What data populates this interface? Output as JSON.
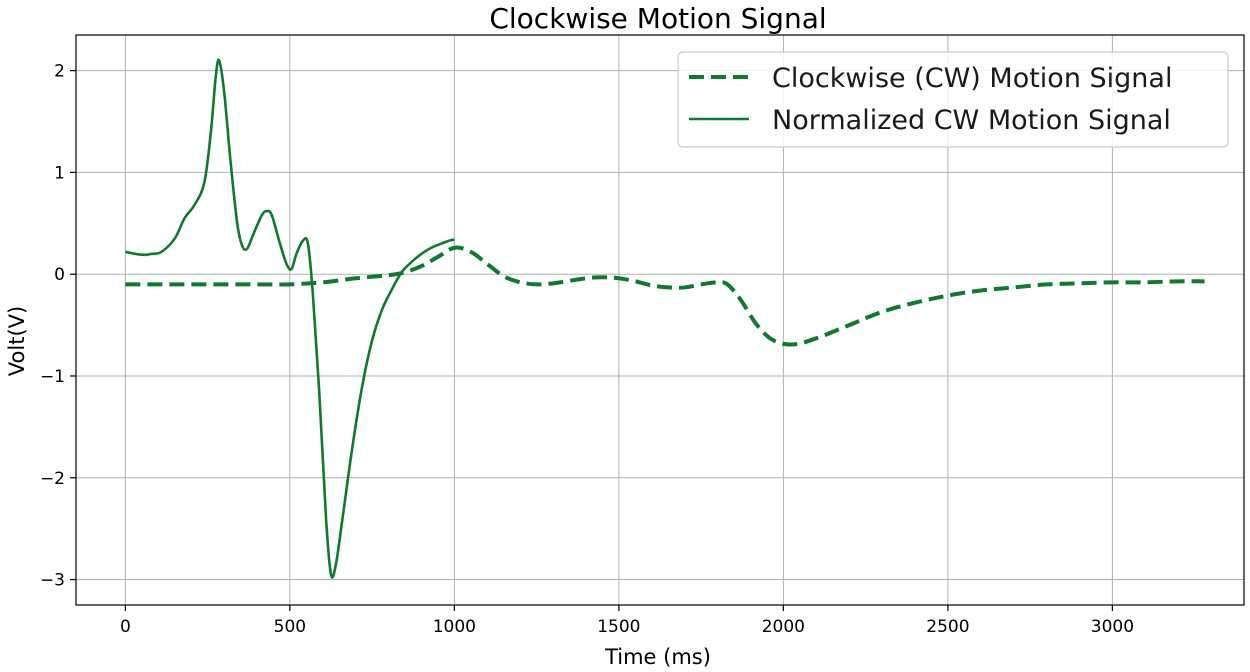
{
  "chart_data": {
    "type": "line",
    "title": "Clockwise Motion Signal",
    "xlabel": "Time (ms)",
    "ylabel": "Volt(V)",
    "xlim": [
      -150,
      3400
    ],
    "ylim": [
      -3.25,
      2.35
    ],
    "x_ticks": [
      0,
      500,
      1000,
      1500,
      2000,
      2500,
      3000
    ],
    "x_tick_labels": [
      "0",
      "500",
      "1000",
      "1500",
      "2000",
      "2500",
      "3000"
    ],
    "y_ticks": [
      2,
      1,
      0,
      -1,
      -2,
      -3
    ],
    "y_tick_labels": [
      "2",
      "1",
      "0",
      "−1",
      "−2",
      "−3"
    ],
    "grid": true,
    "legend_position": "top-right",
    "color": "#0f7a2f",
    "series": [
      {
        "name": "Clockwise (CW) Motion Signal",
        "style": "dashed",
        "points": [
          [
            0,
            -0.1
          ],
          [
            100,
            -0.1
          ],
          [
            200,
            -0.1
          ],
          [
            300,
            -0.1
          ],
          [
            400,
            -0.1
          ],
          [
            500,
            -0.1
          ],
          [
            600,
            -0.08
          ],
          [
            700,
            -0.04
          ],
          [
            800,
            -0.01
          ],
          [
            850,
            0.02
          ],
          [
            900,
            0.08
          ],
          [
            950,
            0.17
          ],
          [
            1000,
            0.26
          ],
          [
            1050,
            0.22
          ],
          [
            1100,
            0.1
          ],
          [
            1150,
            -0.02
          ],
          [
            1200,
            -0.08
          ],
          [
            1250,
            -0.1
          ],
          [
            1300,
            -0.09
          ],
          [
            1400,
            -0.04
          ],
          [
            1450,
            -0.03
          ],
          [
            1500,
            -0.04
          ],
          [
            1550,
            -0.07
          ],
          [
            1600,
            -0.11
          ],
          [
            1650,
            -0.13
          ],
          [
            1700,
            -0.13
          ],
          [
            1750,
            -0.1
          ],
          [
            1800,
            -0.08
          ],
          [
            1830,
            -0.1
          ],
          [
            1870,
            -0.25
          ],
          [
            1920,
            -0.5
          ],
          [
            1970,
            -0.65
          ],
          [
            2030,
            -0.69
          ],
          [
            2100,
            -0.63
          ],
          [
            2200,
            -0.5
          ],
          [
            2300,
            -0.37
          ],
          [
            2400,
            -0.28
          ],
          [
            2500,
            -0.21
          ],
          [
            2600,
            -0.16
          ],
          [
            2700,
            -0.13
          ],
          [
            2800,
            -0.1
          ],
          [
            2900,
            -0.09
          ],
          [
            3000,
            -0.08
          ],
          [
            3100,
            -0.08
          ],
          [
            3200,
            -0.07
          ],
          [
            3280,
            -0.07
          ]
        ]
      },
      {
        "name": "Normalized CW Motion Signal",
        "style": "solid",
        "points": [
          [
            0,
            0.22
          ],
          [
            30,
            0.2
          ],
          [
            60,
            0.19
          ],
          [
            80,
            0.2
          ],
          [
            110,
            0.22
          ],
          [
            150,
            0.35
          ],
          [
            180,
            0.55
          ],
          [
            210,
            0.68
          ],
          [
            240,
            0.9
          ],
          [
            260,
            1.4
          ],
          [
            275,
            1.95
          ],
          [
            285,
            2.1
          ],
          [
            300,
            1.8
          ],
          [
            320,
            1.1
          ],
          [
            340,
            0.5
          ],
          [
            355,
            0.28
          ],
          [
            370,
            0.25
          ],
          [
            390,
            0.4
          ],
          [
            415,
            0.58
          ],
          [
            430,
            0.62
          ],
          [
            445,
            0.58
          ],
          [
            470,
            0.3
          ],
          [
            490,
            0.1
          ],
          [
            505,
            0.05
          ],
          [
            520,
            0.2
          ],
          [
            540,
            0.33
          ],
          [
            555,
            0.3
          ],
          [
            570,
            -0.2
          ],
          [
            590,
            -1.2
          ],
          [
            610,
            -2.4
          ],
          [
            625,
            -2.95
          ],
          [
            640,
            -2.85
          ],
          [
            660,
            -2.4
          ],
          [
            690,
            -1.7
          ],
          [
            720,
            -1.1
          ],
          [
            750,
            -0.65
          ],
          [
            780,
            -0.35
          ],
          [
            810,
            -0.15
          ],
          [
            840,
            0.02
          ],
          [
            870,
            0.12
          ],
          [
            900,
            0.2
          ],
          [
            930,
            0.26
          ],
          [
            960,
            0.3
          ],
          [
            985,
            0.33
          ],
          [
            1000,
            0.34
          ]
        ]
      }
    ]
  }
}
